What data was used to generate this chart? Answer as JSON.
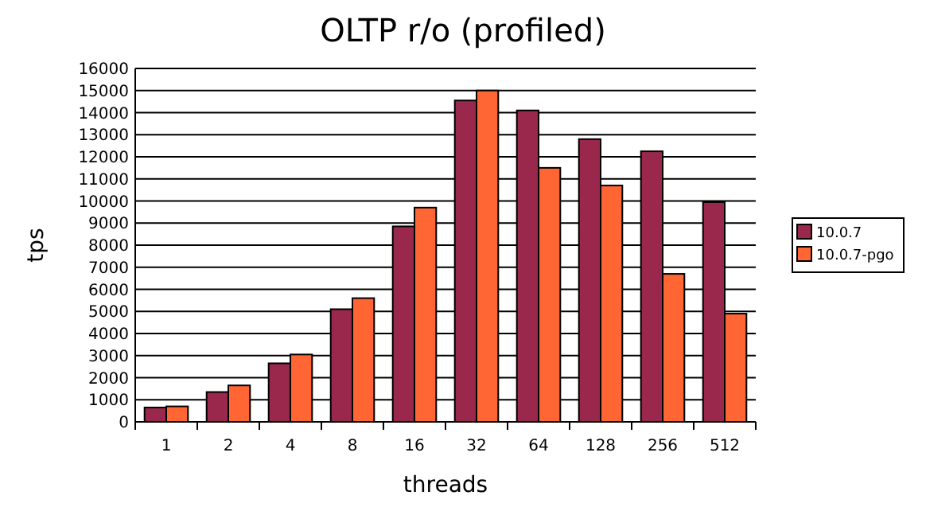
{
  "chart_data": {
    "type": "bar",
    "title": "OLTP r/o (profiled)",
    "xlabel": "threads",
    "ylabel": "tps",
    "categories": [
      "1",
      "2",
      "4",
      "8",
      "16",
      "32",
      "64",
      "128",
      "256",
      "512"
    ],
    "series": [
      {
        "name": "10.0.7",
        "color": "#99284c",
        "values": [
          650,
          1350,
          2650,
          5100,
          8850,
          14550,
          14100,
          12800,
          12250,
          9950
        ]
      },
      {
        "name": "10.0.7-pgo",
        "color": "#ff6633",
        "values": [
          700,
          1650,
          3050,
          5600,
          9700,
          15000,
          11500,
          10700,
          6700,
          4900
        ]
      }
    ],
    "ylim": [
      0,
      16000
    ],
    "yticks": [
      0,
      1000,
      2000,
      3000,
      4000,
      5000,
      6000,
      7000,
      8000,
      9000,
      10000,
      11000,
      12000,
      13000,
      14000,
      15000,
      16000
    ],
    "grid": "y",
    "legend": "right"
  }
}
